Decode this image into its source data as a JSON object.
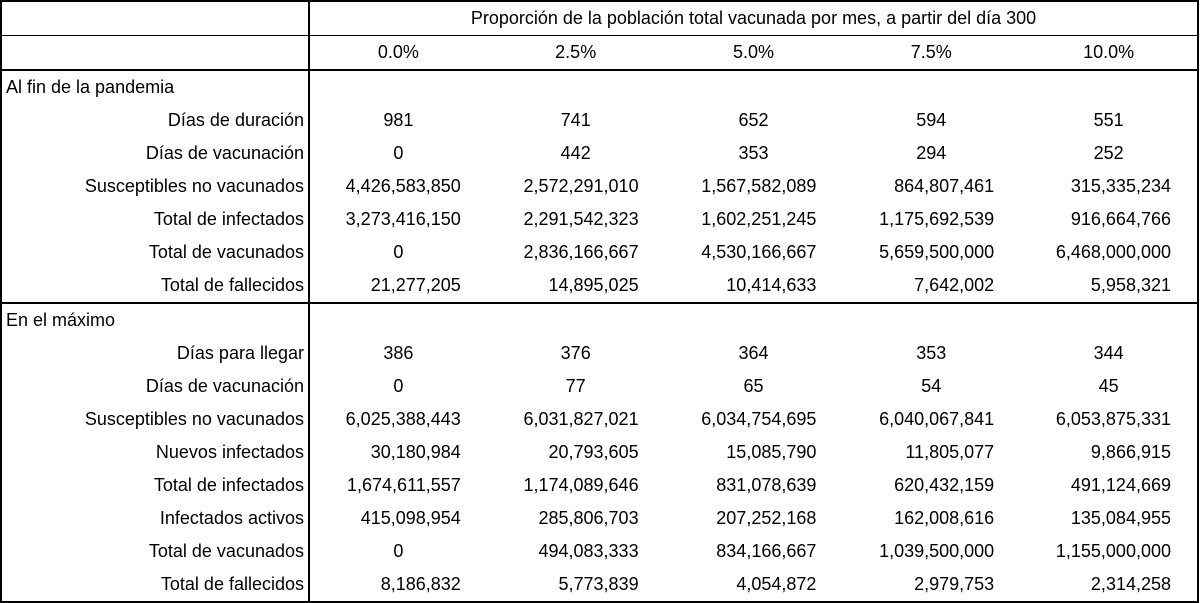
{
  "header": {
    "title": "Proporción de la población total vacunada por mes, a partir del día 300",
    "columns": [
      "0.0%",
      "2.5%",
      "5.0%",
      "7.5%",
      "10.0%"
    ]
  },
  "sections": [
    {
      "label": "Al fin de la pandemia",
      "rows": [
        {
          "label": "Días de duración",
          "values": [
            "981",
            "741",
            "652",
            "594",
            "551"
          ]
        },
        {
          "label": "Días de vacunación",
          "values": [
            "0",
            "442",
            "353",
            "294",
            "252"
          ]
        },
        {
          "label": "Susceptibles no vacunados",
          "values": [
            "4,426,583,850",
            "2,572,291,010",
            "1,567,582,089",
            "864,807,461",
            "315,335,234"
          ]
        },
        {
          "label": "Total de infectados",
          "values": [
            "3,273,416,150",
            "2,291,542,323",
            "1,602,251,245",
            "1,175,692,539",
            "916,664,766"
          ]
        },
        {
          "label": "Total de vacunados",
          "values": [
            "0",
            "2,836,166,667",
            "4,530,166,667",
            "5,659,500,000",
            "6,468,000,000"
          ]
        },
        {
          "label": "Total de fallecidos",
          "values": [
            "21,277,205",
            "14,895,025",
            "10,414,633",
            "7,642,002",
            "5,958,321"
          ]
        }
      ]
    },
    {
      "label": "En el máximo",
      "rows": [
        {
          "label": "Días para llegar",
          "values": [
            "386",
            "376",
            "364",
            "353",
            "344"
          ]
        },
        {
          "label": "Días de vacunación",
          "values": [
            "0",
            "77",
            "65",
            "54",
            "45"
          ]
        },
        {
          "label": "Susceptibles no vacunados",
          "values": [
            "6,025,388,443",
            "6,031,827,021",
            "6,034,754,695",
            "6,040,067,841",
            "6,053,875,331"
          ]
        },
        {
          "label": "Nuevos infectados",
          "values": [
            "30,180,984",
            "20,793,605",
            "15,085,790",
            "11,805,077",
            "9,866,915"
          ]
        },
        {
          "label": "Total de infectados",
          "values": [
            "1,674,611,557",
            "1,174,089,646",
            "831,078,639",
            "620,432,159",
            "491,124,669"
          ]
        },
        {
          "label": "Infectados activos",
          "values": [
            "415,098,954",
            "285,806,703",
            "207,252,168",
            "162,008,616",
            "135,084,955"
          ]
        },
        {
          "label": "Total de vacunados",
          "values": [
            "0",
            "494,083,333",
            "834,166,667",
            "1,039,500,000",
            "1,155,000,000"
          ]
        },
        {
          "label": "Total de fallecidos",
          "values": [
            "8,186,832",
            "5,773,839",
            "4,054,872",
            "2,979,753",
            "2,314,258"
          ]
        }
      ]
    }
  ]
}
